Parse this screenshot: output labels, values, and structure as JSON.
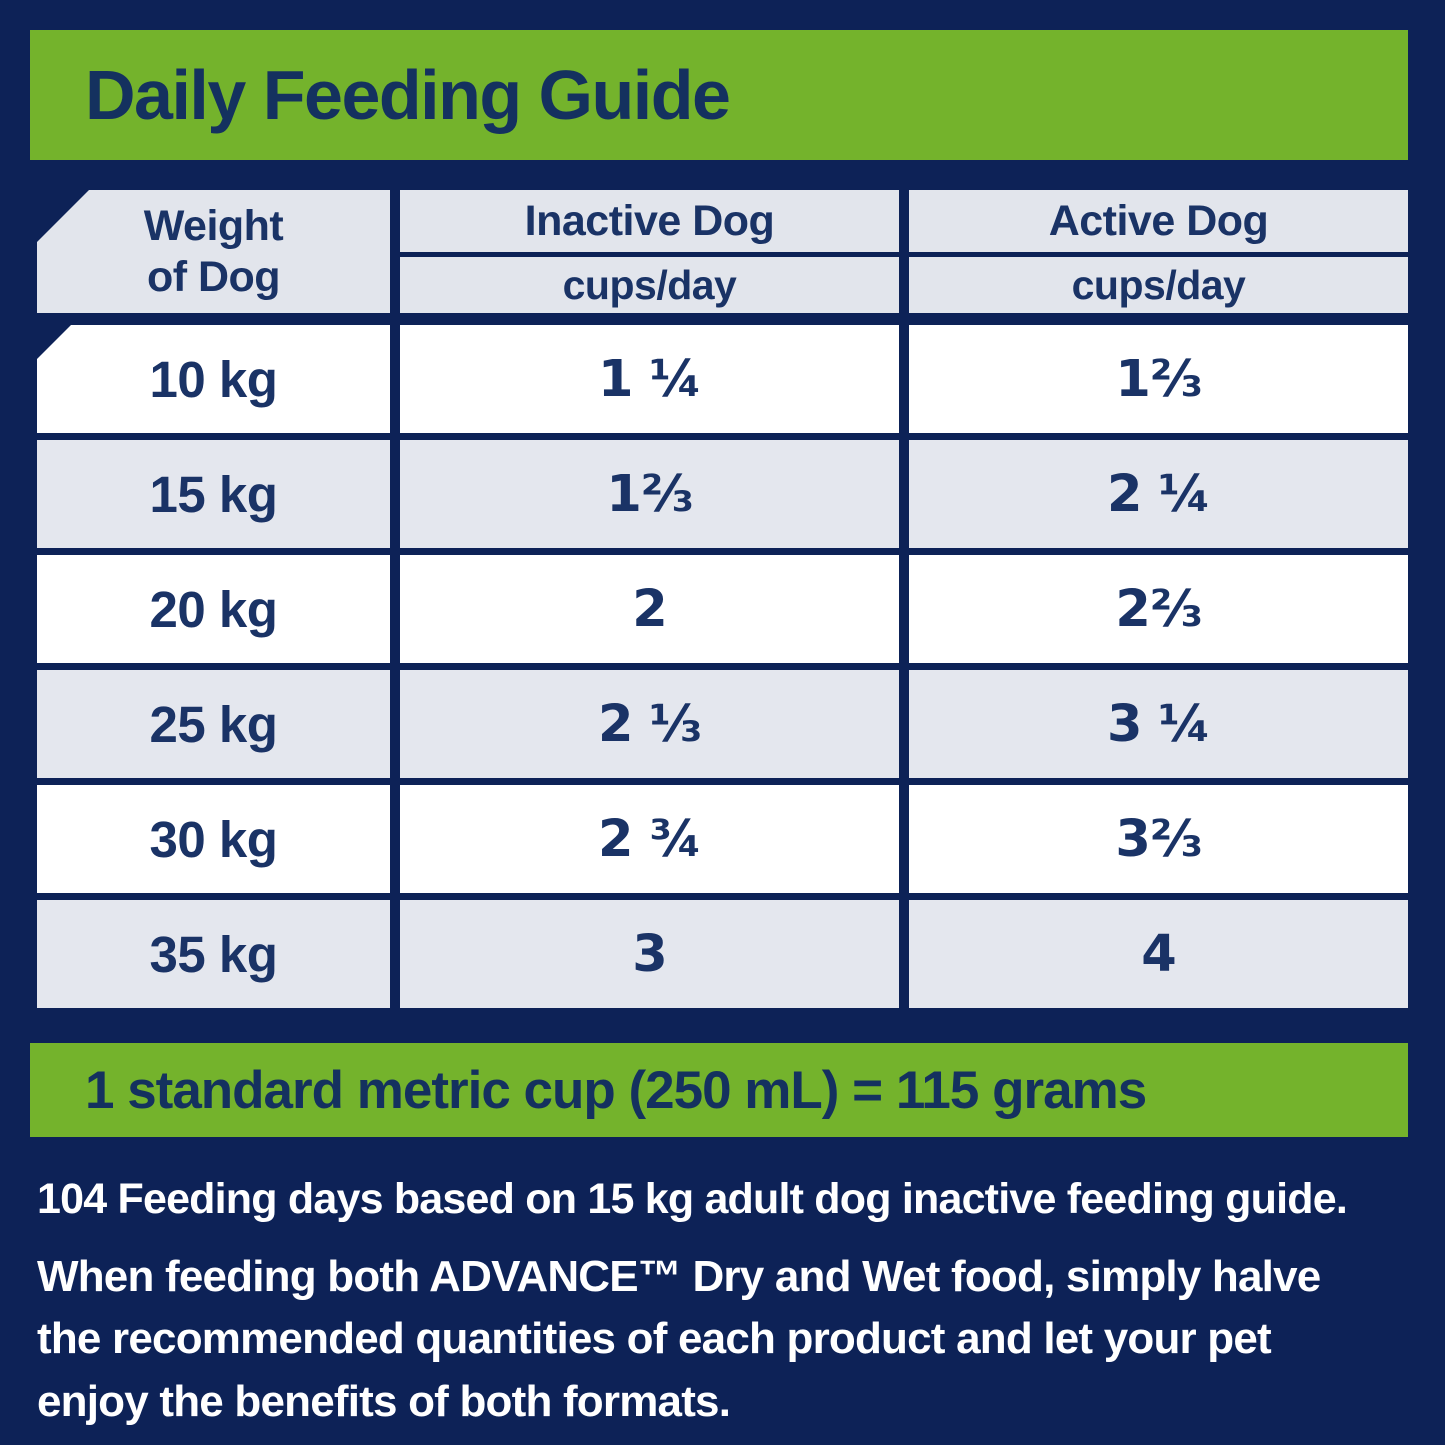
{
  "title": "Daily Feeding Guide",
  "table": {
    "weight_header_line1": "Weight",
    "weight_header_line2": "of Dog",
    "columns": [
      {
        "label": "Inactive Dog",
        "sublabel": "cups/day"
      },
      {
        "label": "Active Dog",
        "sublabel": "cups/day"
      }
    ],
    "rows": [
      {
        "weight": "10 kg",
        "inactive": "1 ¼",
        "active": "1⅔"
      },
      {
        "weight": "15 kg",
        "inactive": "1⅔",
        "active": "2 ¼"
      },
      {
        "weight": "20 kg",
        "inactive": "2",
        "active": "2⅔"
      },
      {
        "weight": "25 kg",
        "inactive": "2 ⅓",
        "active": "3 ¼"
      },
      {
        "weight": "30 kg",
        "inactive": "2 ¾",
        "active": "3⅔"
      },
      {
        "weight": "35 kg",
        "inactive": "3",
        "active": "4"
      }
    ]
  },
  "cup_note": "1 standard metric cup (250 mL) = 115 grams",
  "feeding_days_note": "104 Feeding days based on 15 kg adult dog inactive feeding guide.",
  "combo_note_lines": [
    "When feeding both ADVANCE™ Dry and Wet food, simply halve",
    "the recommended quantities of each product and let your pet",
    "enjoy the benefits of both formats."
  ],
  "colors": {
    "background_navy": "#0d2257",
    "brand_green": "#74b32c",
    "header_cell_gray": "#e2e5ec",
    "alt_row_gray": "#e4e7ee",
    "text_navy": "#1a3366",
    "text_white": "#ffffff"
  }
}
